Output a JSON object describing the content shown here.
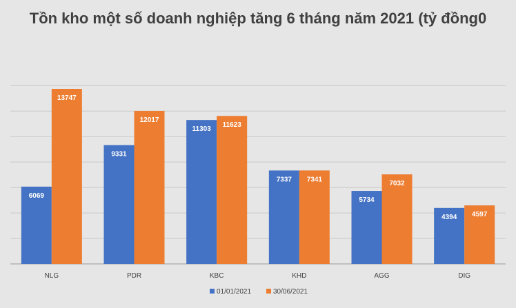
{
  "chart_data": {
    "type": "bar",
    "title": "Tồn kho một số doanh nghiệp tăng 6 tháng năm 2021 (tỷ đồng0",
    "categories": [
      "NLG",
      "PDR",
      "KBC",
      "KHD",
      "AGG",
      "DIG"
    ],
    "series": [
      {
        "name": "01/01/2021",
        "color": "#4472c4",
        "values": [
          6069,
          9331,
          11303,
          7337,
          5734,
          4394
        ]
      },
      {
        "name": "30/06/2021",
        "color": "#ed7d31",
        "values": [
          13747,
          12017,
          11623,
          7341,
          7032,
          4597
        ]
      }
    ],
    "ylim": [
      0,
      14000
    ],
    "ytick_step": 2000,
    "grid": true,
    "show_y_tick_labels": false,
    "legend_position": "bottom"
  }
}
